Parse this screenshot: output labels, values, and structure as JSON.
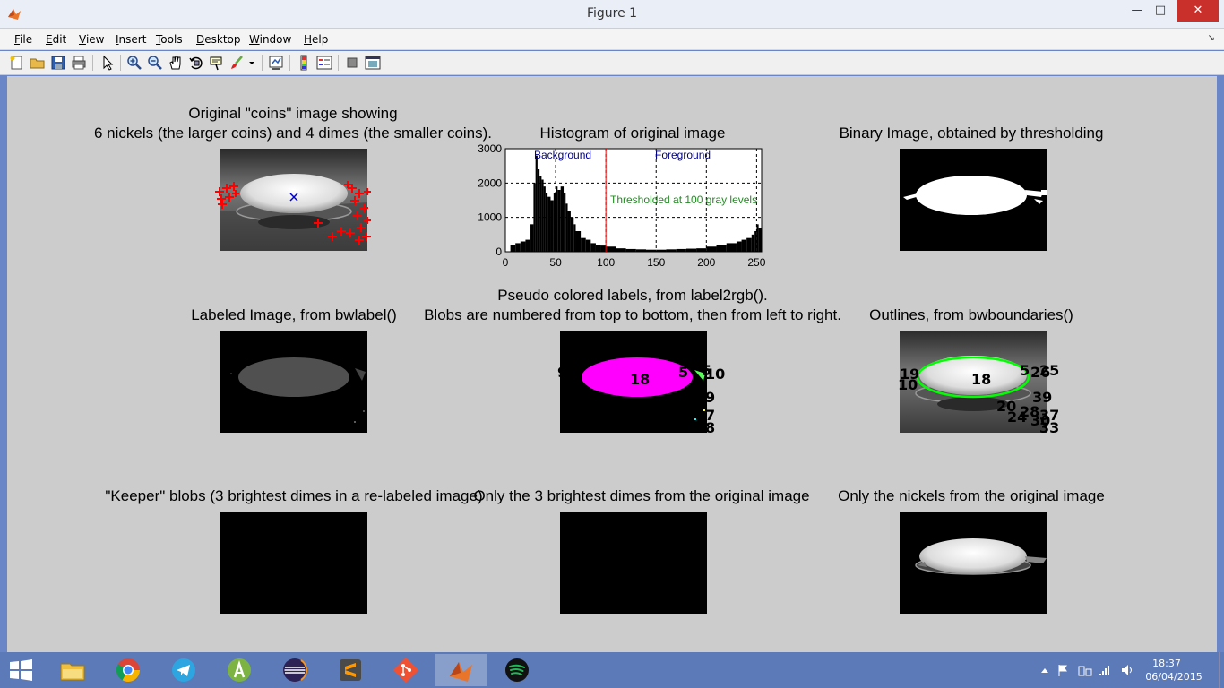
{
  "window": {
    "title": "Figure 1",
    "minimize_icon": "minimize-icon",
    "maximize_icon": "maximize-icon",
    "close_icon": "close-icon"
  },
  "menu": {
    "items": [
      {
        "label": "File",
        "key": "F"
      },
      {
        "label": "Edit",
        "key": "E"
      },
      {
        "label": "View",
        "key": "V"
      },
      {
        "label": "Insert",
        "key": "I"
      },
      {
        "label": "Tools",
        "key": "T"
      },
      {
        "label": "Desktop",
        "key": "D"
      },
      {
        "label": "Window",
        "key": "W"
      },
      {
        "label": "Help",
        "key": "H"
      }
    ]
  },
  "toolbar": {
    "icons": [
      "new-figure-icon",
      "open-file-icon",
      "save-icon",
      "print-icon",
      "edit-plot-icon",
      "zoom-in-icon",
      "zoom-out-icon",
      "pan-icon",
      "rotate-3d-icon",
      "data-cursor-icon",
      "brush-icon",
      "brush-dropdown-icon",
      "link-plot-icon",
      "insert-colorbar-icon",
      "insert-legend-icon",
      "hide-plot-tools-icon",
      "show-plot-tools-icon"
    ]
  },
  "panels": {
    "original": {
      "title_line1": "Original \"coins\" image showing",
      "title_line2": "6 nickels (the larger coins) and 4 dimes (the smaller coins)."
    },
    "histogram": {
      "title": "Histogram of original image"
    },
    "binary": {
      "title": "Binary Image, obtained by thresholding"
    },
    "labeled": {
      "title": "Labeled Image, from bwlabel()"
    },
    "pseudo": {
      "title_line1": "Pseudo colored labels, from label2rgb().",
      "title_line2": "Blobs are numbered from top to bottom, then from left to right."
    },
    "outlines": {
      "title": "Outlines, from bwboundaries()"
    },
    "keeper": {
      "title": "\"Keeper\" blobs (3 brightest dimes in a re-labeled image)"
    },
    "dimes": {
      "title": "Only the 3 brightest dimes from the original image"
    },
    "nickels": {
      "title": "Only the nickels from the original image"
    }
  },
  "blob_labels": {
    "pseudo": [
      "18",
      "9",
      "5",
      "10",
      "5",
      "9",
      "7",
      "8"
    ],
    "outlines": [
      "18",
      "19",
      "5",
      "10",
      "20",
      "24",
      "28",
      "26",
      "25",
      "39",
      "30",
      "37",
      "33"
    ]
  },
  "chart_data": {
    "type": "bar",
    "title": "Histogram of original image",
    "xlim": [
      0,
      255
    ],
    "ylim": [
      0,
      3000
    ],
    "xticks": [
      0,
      50,
      100,
      150,
      200,
      250
    ],
    "yticks": [
      0,
      1000,
      2000,
      3000
    ],
    "grid": true,
    "threshold": 100,
    "annotations": {
      "background": "Background",
      "foreground": "Foreground",
      "threshold_text": "Thresholded at 100 gray levels"
    },
    "x": [
      0,
      5,
      10,
      15,
      20,
      25,
      28,
      30,
      32,
      34,
      36,
      38,
      40,
      42,
      45,
      48,
      50,
      52,
      55,
      58,
      60,
      62,
      65,
      68,
      70,
      75,
      80,
      85,
      90,
      95,
      100,
      110,
      120,
      130,
      140,
      150,
      160,
      170,
      180,
      190,
      200,
      210,
      220,
      230,
      235,
      240,
      245,
      248,
      250,
      252,
      255
    ],
    "values": [
      0,
      200,
      250,
      300,
      350,
      800,
      2000,
      2800,
      2400,
      2200,
      2100,
      1900,
      1700,
      1600,
      1500,
      1700,
      1900,
      1800,
      1900,
      1700,
      1400,
      1200,
      1000,
      800,
      600,
      400,
      350,
      250,
      200,
      180,
      150,
      100,
      80,
      70,
      60,
      60,
      70,
      80,
      90,
      100,
      150,
      200,
      250,
      300,
      350,
      400,
      500,
      600,
      800,
      700,
      300
    ]
  },
  "taskbar": {
    "apps": [
      "file-explorer-icon",
      "chrome-icon",
      "telegram-icon",
      "android-studio-icon",
      "eclipse-icon",
      "sublime-text-icon",
      "git-icon",
      "matlab-icon",
      "spotify-icon"
    ],
    "active_app": "matlab-icon",
    "clock_time": "18:37",
    "clock_date": "06/04/2015"
  }
}
